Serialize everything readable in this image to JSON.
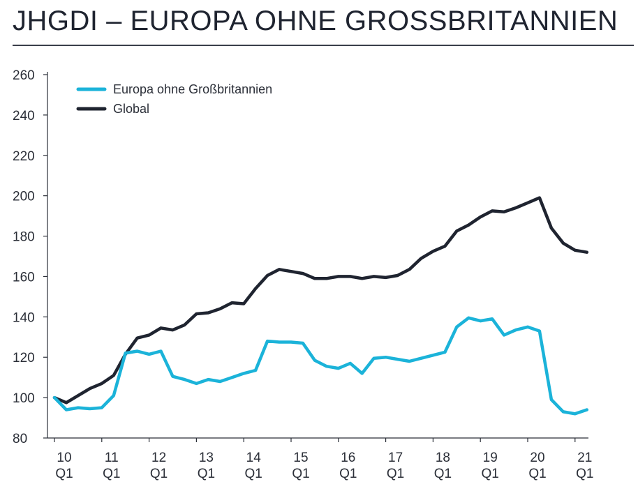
{
  "chart_data": {
    "type": "line",
    "title": "JHGDI – EUROPA OHNE GROSSBRITANNIEN",
    "xlabel": "",
    "ylabel": "",
    "ylim": [
      80,
      260
    ],
    "yticks": [
      80,
      100,
      120,
      140,
      160,
      180,
      200,
      220,
      240,
      260
    ],
    "xticks": [
      {
        "year": "10",
        "quarter": "Q1"
      },
      {
        "year": "11",
        "quarter": "Q1"
      },
      {
        "year": "12",
        "quarter": "Q1"
      },
      {
        "year": "13",
        "quarter": "Q1"
      },
      {
        "year": "14",
        "quarter": "Q1"
      },
      {
        "year": "15",
        "quarter": "Q1"
      },
      {
        "year": "16",
        "quarter": "Q1"
      },
      {
        "year": "17",
        "quarter": "Q1"
      },
      {
        "year": "18",
        "quarter": "Q1"
      },
      {
        "year": "19",
        "quarter": "Q1"
      },
      {
        "year": "20",
        "quarter": "Q1"
      },
      {
        "year": "21",
        "quarter": "Q1"
      }
    ],
    "legend_position": "top-left",
    "series": [
      {
        "name": "Europa ohne Großbritannien",
        "color": "#1bb3d9",
        "values": [
          100,
          94,
          95,
          94.5,
          95,
          101,
          122,
          123,
          121.5,
          123,
          110.5,
          109,
          107,
          109,
          108,
          110,
          112,
          113.5,
          128,
          127.5,
          127.5,
          127,
          118.5,
          115.5,
          114.5,
          117,
          112,
          119.5,
          120,
          119,
          118,
          119.5,
          121,
          122.5,
          135,
          139.5,
          138,
          139,
          131,
          133.5,
          135,
          133,
          99,
          93,
          92,
          94
        ]
      },
      {
        "name": "Global",
        "color": "#1f2430",
        "values": [
          100,
          97.5,
          101,
          104.5,
          107,
          111,
          121.5,
          129.5,
          131,
          134.5,
          133.5,
          136,
          141.5,
          142,
          144,
          147,
          146.5,
          154,
          160.5,
          163.5,
          162.5,
          161.5,
          159,
          159,
          160,
          160,
          159,
          160,
          159.5,
          160.5,
          163.5,
          169,
          172.5,
          175,
          182.5,
          185.5,
          189.5,
          192.5,
          192,
          194,
          196.5,
          199,
          184,
          176.5,
          173,
          172
        ]
      }
    ]
  }
}
